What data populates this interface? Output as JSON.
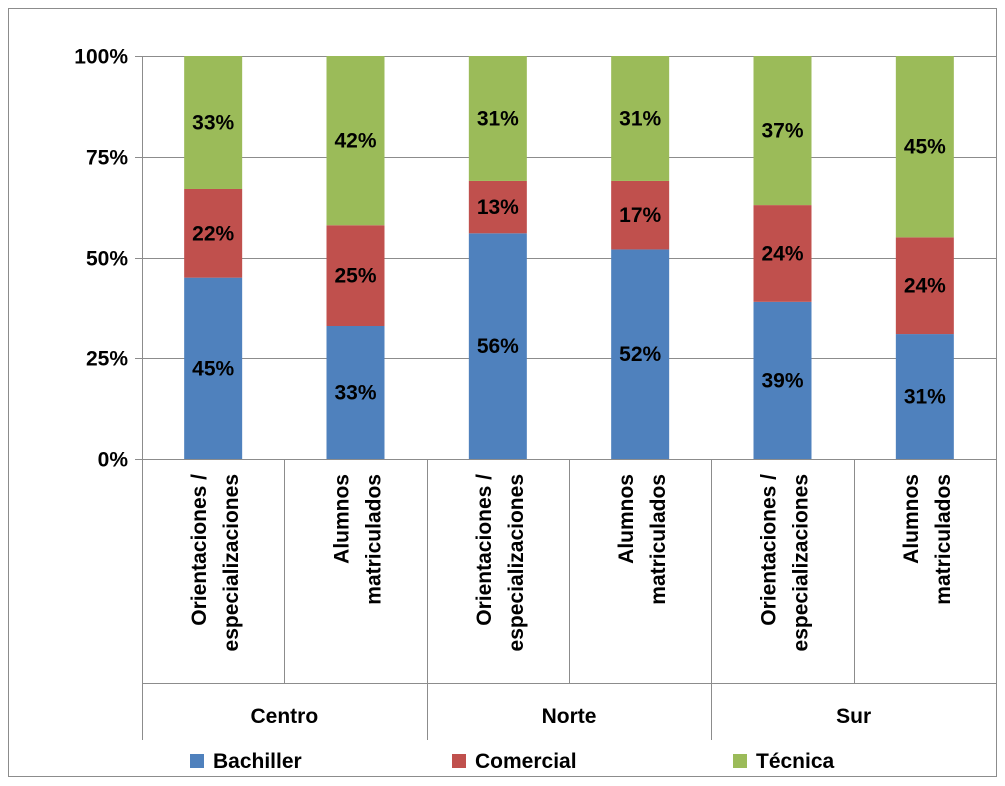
{
  "chart_data": {
    "type": "bar",
    "stacked": true,
    "percent": true,
    "title": "",
    "xlabel": "",
    "ylabel": "",
    "ylim": [
      0,
      100
    ],
    "y_ticks": [
      "0%",
      "25%",
      "50%",
      "75%",
      "100%"
    ],
    "y_tick_values": [
      0,
      25,
      50,
      75,
      100
    ],
    "grid": true,
    "legend_position": "bottom",
    "groups": [
      {
        "label": "Centro",
        "categories": [
          "Orientaciones / especializaciones",
          "Alumnos matriculados"
        ]
      },
      {
        "label": "Norte",
        "categories": [
          "Orientaciones / especializaciones",
          "Alumnos matriculados"
        ]
      },
      {
        "label": "Sur",
        "categories": [
          "Orientaciones / especializaciones",
          "Alumnos matriculados"
        ]
      }
    ],
    "categories": [
      [
        "Orientaciones /",
        "especializaciones"
      ],
      [
        "Alumnos",
        "matriculados"
      ],
      [
        "Orientaciones /",
        "especializaciones"
      ],
      [
        "Alumnos",
        "matriculados"
      ],
      [
        "Orientaciones /",
        "especializaciones"
      ],
      [
        "Alumnos",
        "matriculados"
      ]
    ],
    "series": [
      {
        "name": "Bachiller",
        "color": "#4f81bd",
        "values": [
          45,
          33,
          56,
          52,
          39,
          31
        ]
      },
      {
        "name": "Comercial",
        "color": "#c0504d",
        "values": [
          22,
          25,
          13,
          17,
          24,
          24
        ]
      },
      {
        "name": "Técnica",
        "color": "#9bbb59",
        "values": [
          33,
          42,
          31,
          31,
          37,
          45
        ]
      }
    ],
    "value_suffix": "%"
  }
}
